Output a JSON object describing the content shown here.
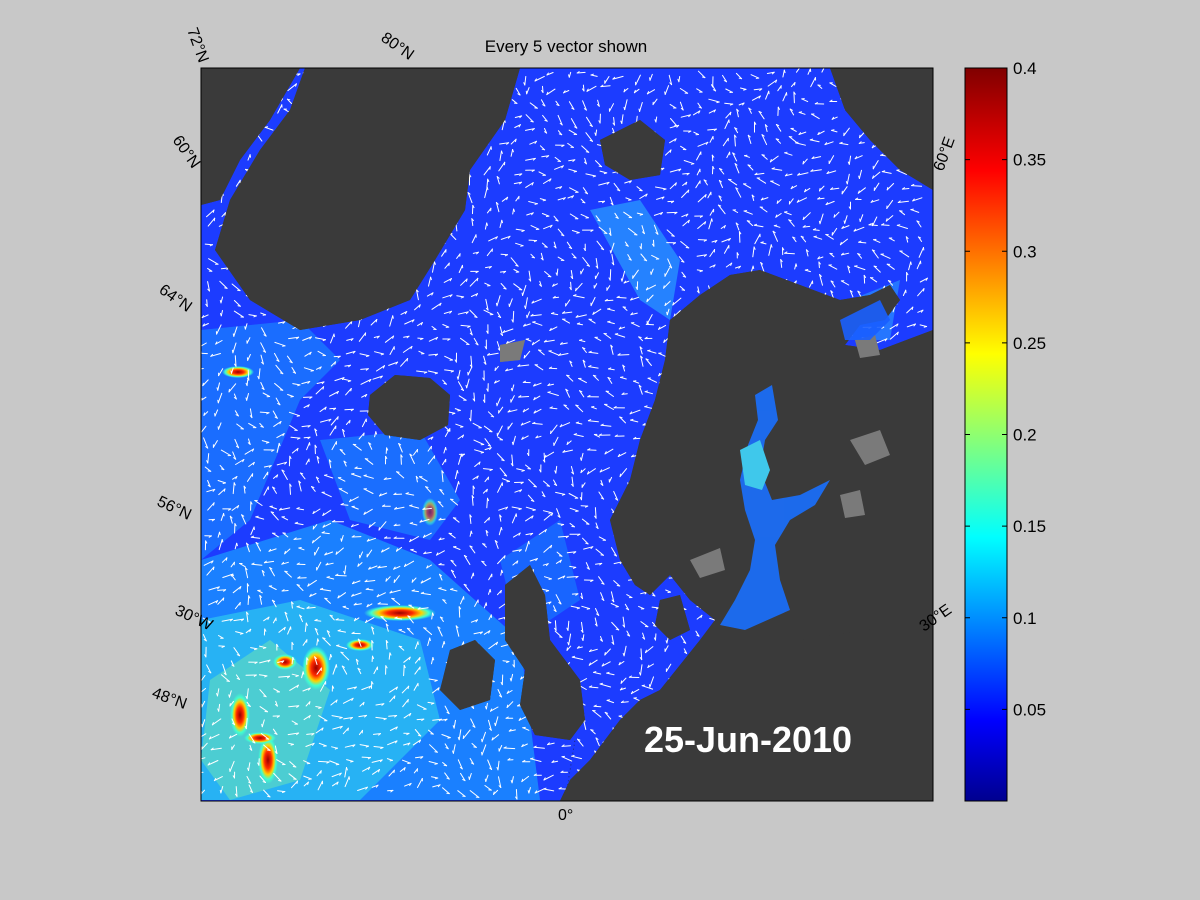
{
  "title": "Every 5 vector shown",
  "date_label": "25-Jun-2010",
  "colorbar": {
    "min": 0,
    "max": 0.4,
    "ticks": [
      "0.05",
      "0.1",
      "0.15",
      "0.2",
      "0.25",
      "0.3",
      "0.35",
      "0.4"
    ],
    "colormap": "jet"
  },
  "graticule_labels": {
    "lat_72N": "72°N",
    "lat_60N_left": "60°N",
    "lat_64N": "64°N",
    "lat_56N": "56°N",
    "lat_48N": "48°N",
    "lat_80N": "80°N",
    "lon_30W": "30°W",
    "lon_0": "0°",
    "lon_30E": "30°E",
    "lon_60E": "60°E"
  },
  "colors": {
    "background": "#c8c8c8",
    "land": "#3a3a3a",
    "ice": "#7a7a7a",
    "ocean_base": "#1c3cff",
    "vectors": "#ffffff"
  }
}
